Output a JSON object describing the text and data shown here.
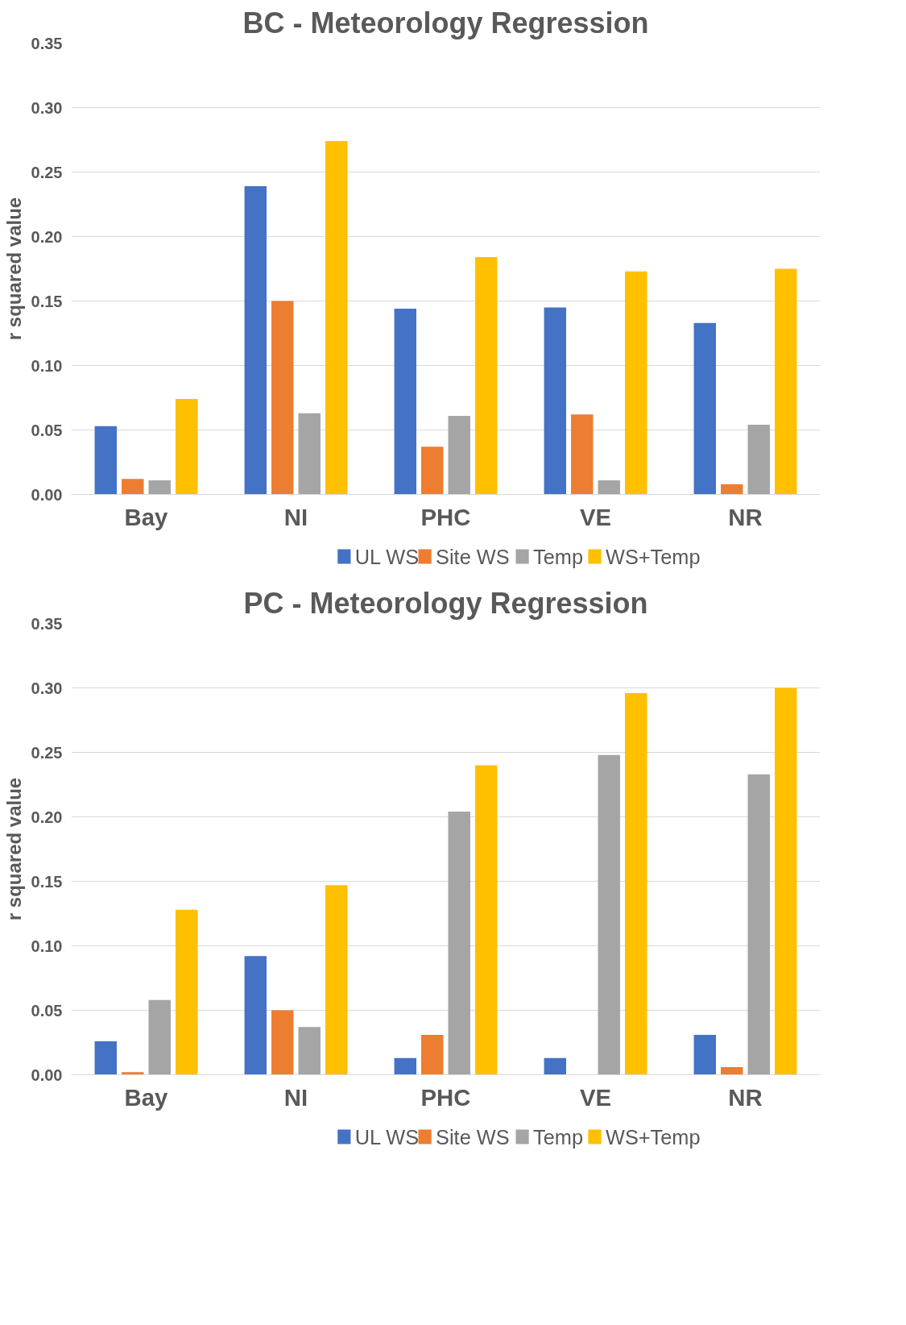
{
  "chart_data": [
    {
      "type": "bar",
      "title": "BC - Meteorology Regression",
      "ylabel": "r squared value",
      "categories": [
        "Bay",
        "NI",
        "PHC",
        "VE",
        "NR"
      ],
      "ylim": [
        0,
        0.35
      ],
      "yticks": [
        {
          "value": 0,
          "label": "0.00"
        },
        {
          "value": 0.05,
          "label": "0.05"
        },
        {
          "value": 0.1,
          "label": "0.10"
        },
        {
          "value": 0.15,
          "label": "0.15"
        },
        {
          "value": 0.2,
          "label": "0.20"
        },
        {
          "value": 0.25,
          "label": "0.25"
        },
        {
          "value": 0.3,
          "label": "0.30"
        },
        {
          "value": 0.35,
          "label": "0.35"
        }
      ],
      "grid": "y",
      "legend": "bottom",
      "series": [
        {
          "name": "UL WS",
          "color": "#4472c4",
          "values": [
            0.053,
            0.239,
            0.144,
            0.145,
            0.133
          ]
        },
        {
          "name": "Site WS",
          "color": "#ed7d31",
          "values": [
            0.012,
            0.15,
            0.037,
            0.062,
            0.008
          ]
        },
        {
          "name": "Temp",
          "color": "#a5a5a5",
          "values": [
            0.011,
            0.063,
            0.061,
            0.011,
            0.054
          ]
        },
        {
          "name": "WS+Temp",
          "color": "#ffc000",
          "values": [
            0.074,
            0.274,
            0.184,
            0.173,
            0.175
          ]
        }
      ]
    },
    {
      "type": "bar",
      "title": "PC - Meteorology Regression",
      "ylabel": "r squared value",
      "categories": [
        "Bay",
        "NI",
        "PHC",
        "VE",
        "NR"
      ],
      "ylim": [
        0,
        0.35
      ],
      "yticks": [
        {
          "value": 0,
          "label": "0.00"
        },
        {
          "value": 0.05,
          "label": "0.05"
        },
        {
          "value": 0.1,
          "label": "0.10"
        },
        {
          "value": 0.15,
          "label": "0.15"
        },
        {
          "value": 0.2,
          "label": "0.20"
        },
        {
          "value": 0.25,
          "label": "0.25"
        },
        {
          "value": 0.3,
          "label": "0.30"
        },
        {
          "value": 0.35,
          "label": "0.35"
        }
      ],
      "grid": "y",
      "legend": "bottom",
      "series": [
        {
          "name": "UL WS",
          "color": "#4472c4",
          "values": [
            0.026,
            0.092,
            0.013,
            0.013,
            0.031
          ]
        },
        {
          "name": "Site WS",
          "color": "#ed7d31",
          "values": [
            0.002,
            0.05,
            0.031,
            0.0,
            0.006
          ]
        },
        {
          "name": "Temp",
          "color": "#a5a5a5",
          "values": [
            0.058,
            0.037,
            0.204,
            0.248,
            0.233
          ]
        },
        {
          "name": "WS+Temp",
          "color": "#ffc000",
          "values": [
            0.128,
            0.147,
            0.24,
            0.296,
            0.3
          ]
        }
      ]
    }
  ]
}
